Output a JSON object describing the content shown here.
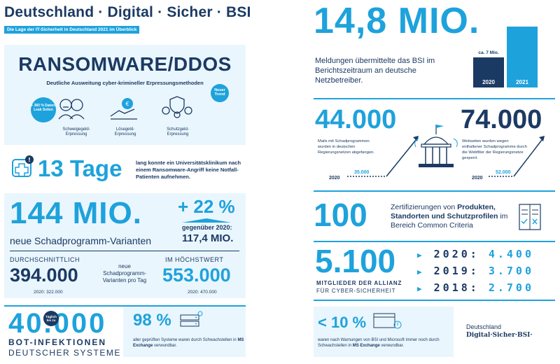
{
  "header": {
    "title": "Deutschland · Digital · Sicher · BSI",
    "subtitle": "Die Lage der IT-Sicherheit in Deutschland 2021 im Überblick"
  },
  "ransomware": {
    "title": "RANSOMWARE/DDOS",
    "subtitle": "Deutliche Ausweitung cyber-krimineller Erpressungsmethoden",
    "badge_new": "Neuer Trend",
    "badge_leak": "+ 360 % Daten-Leak Seiten",
    "items": [
      "Schweigegeld-Erpressung",
      "Lösegeld-Erpressung",
      "Schutzgeld-Erpressung"
    ]
  },
  "hospital": {
    "value": "13 Tage",
    "text": "lang konnte ein Universitätsklinikum nach einem Ransomware-Angriff keine Notfall-Patienten aufnehmen."
  },
  "malware": {
    "value": "144 MIO.",
    "label": "neue Schadprogramm-Varianten",
    "change": "+ 22 %",
    "compare_label": "gegenüber 2020:",
    "compare_value": "117,4 MIO.",
    "avg_label": "DURCHSCHNITTLICH",
    "avg_value": "394.000",
    "avg_prev": "2020: 322.000",
    "mid_label": "neue Schadprogramm-Varianten pro Tag",
    "max_label": "IM HÖCHSTWERT",
    "max_value": "553.000",
    "max_prev": "2020: 470.000"
  },
  "bots": {
    "value": "40.000",
    "badge": "Täglich bis zu",
    "label1": "BOT-INFEKTIONEN",
    "label2": "DEUTSCHER SYSTEME",
    "percent": "98 %",
    "percent_text_1": "aller geprüften Systeme waren durch",
    "percent_text_2": "Schwachstellen in",
    "percent_text_bold": "MS Exchange",
    "percent_text_3": "verwundbar."
  },
  "reports": {
    "value": "14,8 MIO.",
    "text": "Meldungen übermittelte das BSI im Berichtszeitraum an deutsche Netzbetreiber.",
    "bar_prev_label": "ca. 7 Mio.",
    "bar_prev_year": "2020",
    "bar_curr_year": "2021",
    "colors": {
      "bar_2020": "#1b3a63",
      "bar_2021": "#1ea2dc"
    }
  },
  "mails": {
    "value": "44.000",
    "text": "Mails mit Schadprogrammen wurden in deutschen Regierungsnetzen abgefangen.",
    "prev_value": "35.000",
    "prev_year": "2020"
  },
  "websites": {
    "value": "74.000",
    "text": "Webseiten wurden wegen enthaltener Schadprogramme durch die Webfilter der Regierungsnetze gesperrt.",
    "prev_value": "52.000",
    "prev_year": "2020"
  },
  "certs": {
    "value": "100",
    "text_1": "Zertifizierungen von",
    "text_bold_1": "Produkten,",
    "text_bold_2": "Standorten und Schutzprofilen",
    "text_2": "im Bereich Common Criteria"
  },
  "alliance": {
    "value": "5.100",
    "label1": "MITGLIEDER DER ALLIANZ",
    "label2": "FÜR CYBER-SICHERHEIT",
    "rows": [
      {
        "year": "2020:",
        "value": "4.400"
      },
      {
        "year": "2019:",
        "value": "3.700"
      },
      {
        "year": "2018:",
        "value": "2.700"
      }
    ]
  },
  "warnings": {
    "value": "< 10 %",
    "text_1": "waren nach Warnungen von BSI und Microsoft immer",
    "text_2": "noch durch Schwachstellen in",
    "text_bold": "MS Exchange",
    "text_3": "verwundbar."
  },
  "footer_logo": {
    "line1": "Deutschland",
    "line2": "Digital·Sicher·BSI·"
  }
}
